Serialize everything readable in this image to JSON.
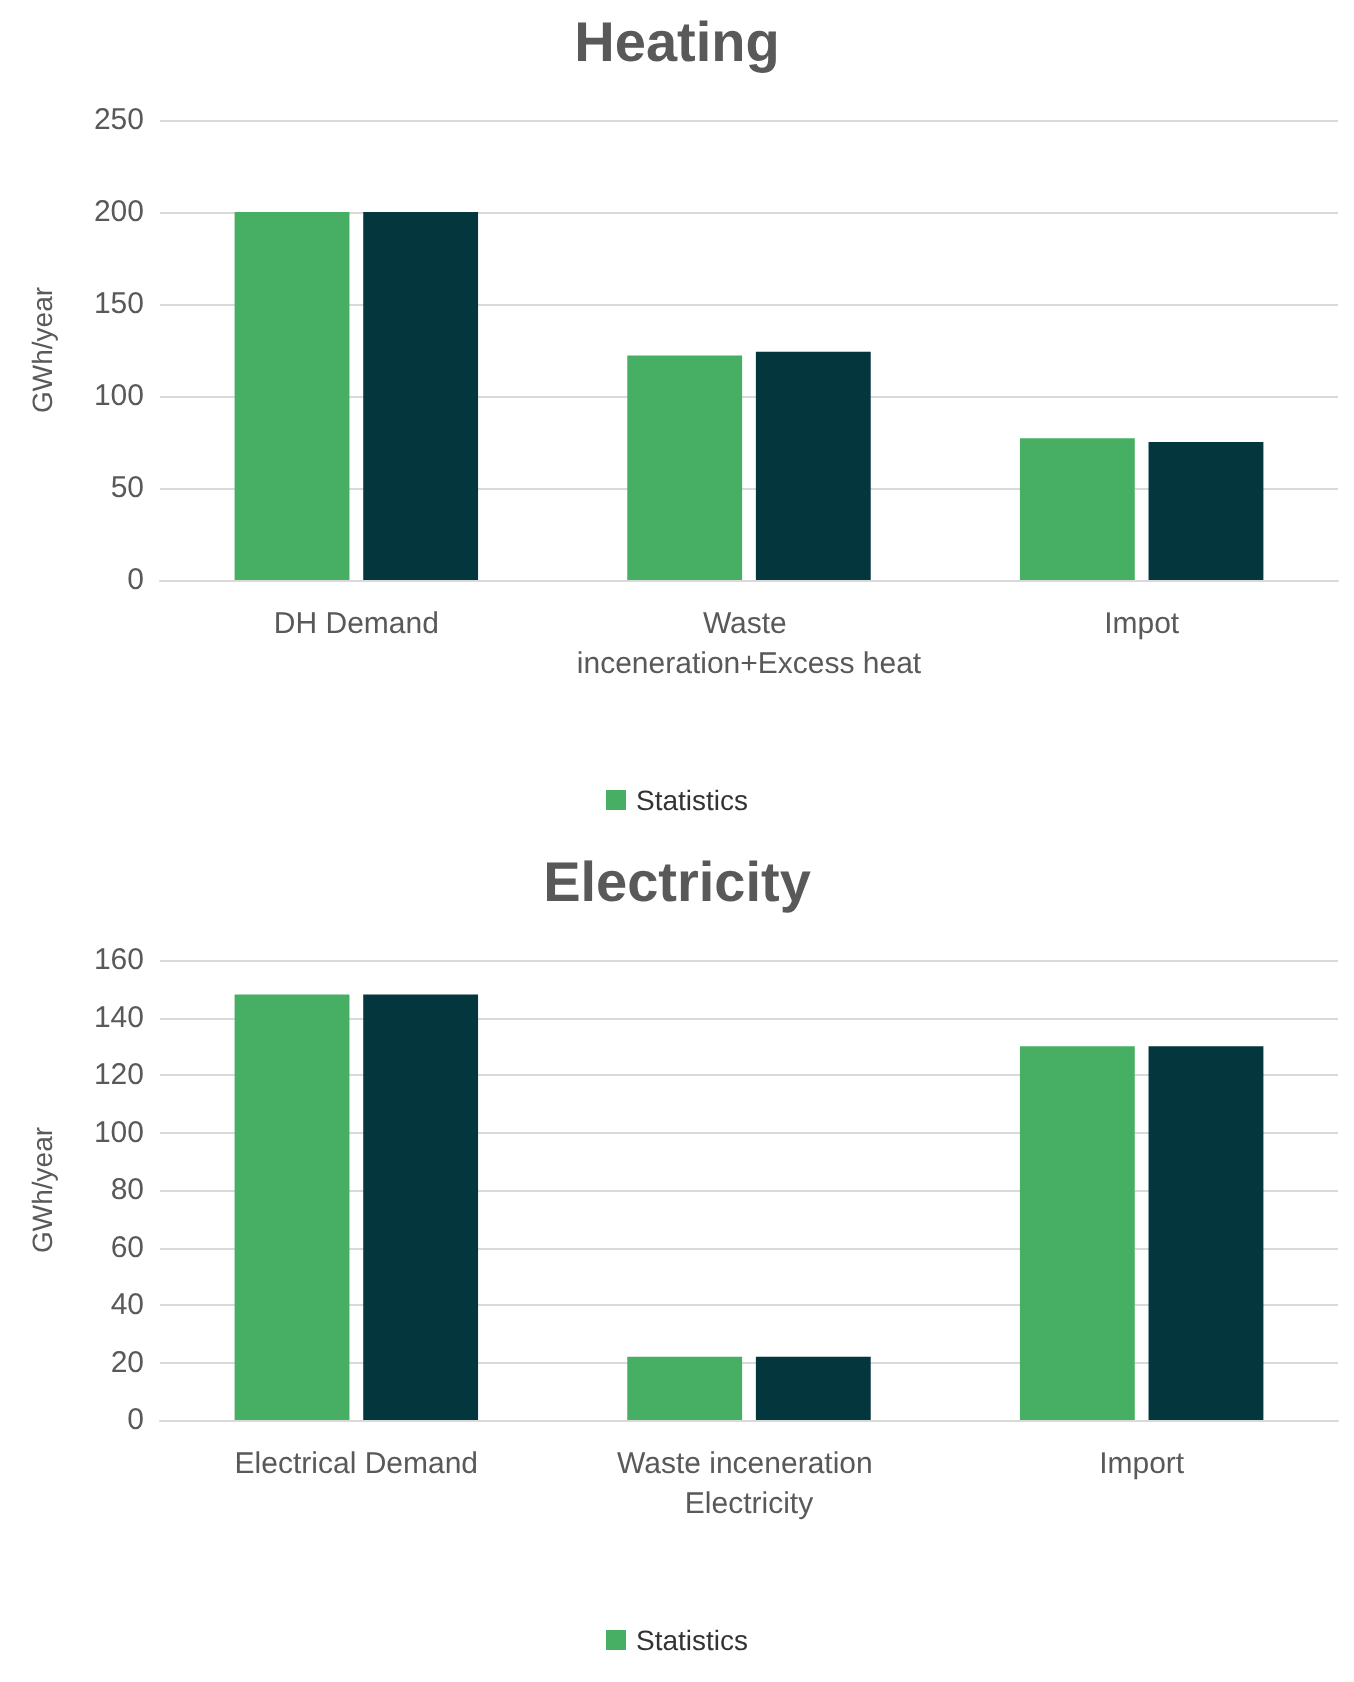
{
  "chart_data": [
    {
      "type": "bar",
      "title": "Heating",
      "ylabel": "GWh/year",
      "categories": [
        "DH Demand",
        "Waste inceneration+Excess heat",
        "Impot"
      ],
      "series": [
        {
          "name": "Statistics",
          "color": "#47af63",
          "values": [
            200,
            122,
            77
          ]
        },
        {
          "color": "#03373d",
          "values": [
            200,
            124,
            75
          ]
        }
      ],
      "ylim": [
        0,
        250
      ],
      "yticks": [
        0,
        50,
        100,
        150,
        200,
        250
      ],
      "grid": "y",
      "legend": "bottom"
    },
    {
      "type": "bar",
      "title": "Electricity",
      "ylabel": "GWh/year",
      "categories": [
        "Electrical Demand",
        "Waste inceneration Electricity",
        "Import"
      ],
      "series": [
        {
          "name": "Statistics",
          "color": "#47af63",
          "values": [
            148,
            22,
            130
          ]
        },
        {
          "color": "#03373d",
          "values": [
            148,
            22,
            130
          ]
        }
      ],
      "ylim": [
        0,
        160
      ],
      "yticks": [
        0,
        20,
        40,
        60,
        80,
        100,
        120,
        140,
        160
      ],
      "grid": "y",
      "legend": "bottom"
    }
  ]
}
